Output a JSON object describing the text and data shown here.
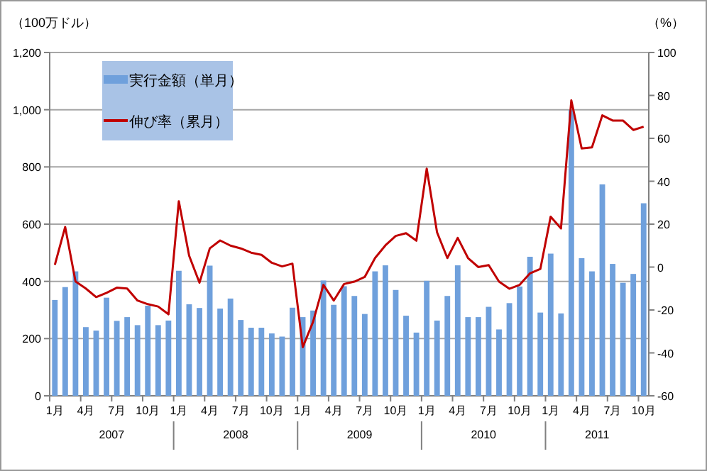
{
  "chart_data": {
    "type": "bar",
    "ylabel": "（100万ドル）",
    "y2label": "（%）",
    "categories": [
      "1月",
      null,
      null,
      "4月",
      null,
      null,
      "7月",
      null,
      null,
      "10月",
      null,
      null,
      "1月",
      null,
      null,
      "4月",
      null,
      null,
      "7月",
      null,
      null,
      "10月",
      null,
      null,
      "1月",
      null,
      null,
      "4月",
      null,
      null,
      "7月",
      null,
      null,
      "10月",
      null,
      null,
      "1月",
      null,
      null,
      "4月",
      null,
      null,
      "7月",
      null,
      null,
      "10月",
      null,
      null,
      "1月",
      null,
      null,
      "4月",
      null,
      null,
      "7月",
      null,
      null,
      "10月"
    ],
    "annotations": [
      "2007",
      "2008",
      "2009",
      "2010",
      "2011"
    ],
    "series": [
      {
        "name": "実行金額（単月）",
        "color": "#6fa0dc",
        "values": [
          335,
          380,
          435,
          240,
          228,
          343,
          262,
          275,
          247,
          315,
          247,
          263,
          437,
          320,
          307,
          455,
          305,
          340,
          265,
          238,
          238,
          218,
          207,
          308,
          275,
          298,
          403,
          318,
          383,
          349,
          286,
          435,
          456,
          370,
          280,
          221,
          402,
          263,
          349,
          456,
          275,
          275,
          311,
          232,
          324,
          382,
          486,
          291,
          497,
          288,
          999,
          481,
          435,
          739,
          461,
          395,
          426,
          673
        ]
      },
      {
        "name": "伸び率（累月）",
        "type": "line",
        "axis": "y2",
        "color": "#c00000",
        "values": [
          1,
          18.7,
          -6.7,
          -10,
          -14,
          -12,
          -9.6,
          -10,
          -15.6,
          -17.3,
          -18.4,
          -22,
          30.7,
          5.3,
          -7.3,
          8.7,
          12.4,
          10,
          8.7,
          6.7,
          5.7,
          2,
          0.3,
          1.6,
          -37.3,
          -25.5,
          -8.3,
          -15.6,
          -7.9,
          -6.8,
          -4.6,
          4.2,
          10.1,
          14.5,
          15.8,
          12.3,
          45.9,
          16.2,
          4.2,
          13.6,
          4.2,
          0,
          0.9,
          -6.8,
          -10.1,
          -8.3,
          -2.9,
          -0.9,
          23.5,
          18,
          77.7,
          55.3,
          55.8,
          70.7,
          68.3,
          68.3,
          63.9,
          65.4
        ]
      }
    ],
    "ylim": [
      0,
      1200
    ],
    "yticks": [
      0,
      200,
      400,
      600,
      800,
      {
        "value": 1000,
        "label": "1,000"
      },
      {
        "value": 1200,
        "label": "1,200"
      }
    ],
    "y2lim": [
      -60,
      100
    ],
    "y2ticks": [
      -60,
      -40,
      -20,
      0,
      20,
      40,
      60,
      80,
      100
    ],
    "grid": "y",
    "legend": "top left"
  }
}
